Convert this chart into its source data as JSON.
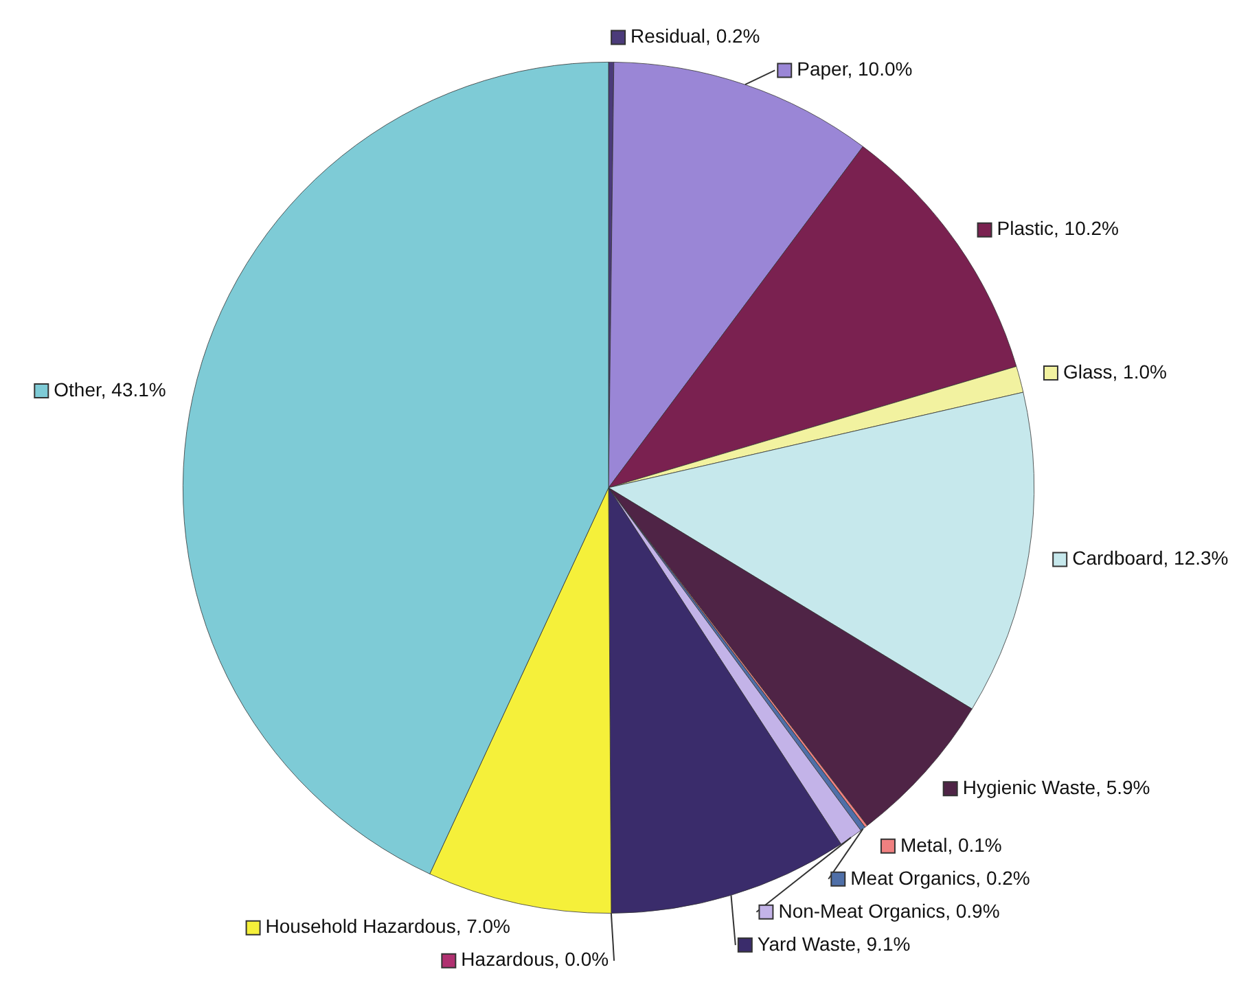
{
  "chart_data": {
    "type": "pie",
    "legend": "right",
    "categories": [
      "Residual",
      "Paper",
      "Plastic",
      "Glass",
      "Cardboard",
      "Hygienic Waste",
      "Metal",
      "Meat Organics",
      "Non-Meat Organics",
      "Yard Waste",
      "Hazardous",
      "Household Hazardous",
      "Other"
    ],
    "values": [
      0.2,
      10.0,
      10.2,
      1.0,
      12.3,
      5.9,
      0.1,
      0.2,
      0.9,
      9.1,
      0.0,
      7.0,
      43.1
    ],
    "value_labels": [
      "0.2%",
      "10.0%",
      "10.2%",
      "1.0%",
      "12.3%",
      "5.9%",
      "0.1%",
      "0.2%",
      "0.9%",
      "9.1%",
      "0.0%",
      "7.0%",
      "43.1%"
    ],
    "colors": [
      "#4b3b7a",
      "#9a86d6",
      "#7a2150",
      "#f2f2a0",
      "#c6e8ec",
      "#4f2446",
      "#f08080",
      "#4f6fa8",
      "#c3b3e8",
      "#3a2c6b",
      "#b03070",
      "#f5f03a",
      "#7ecbd6"
    ]
  }
}
